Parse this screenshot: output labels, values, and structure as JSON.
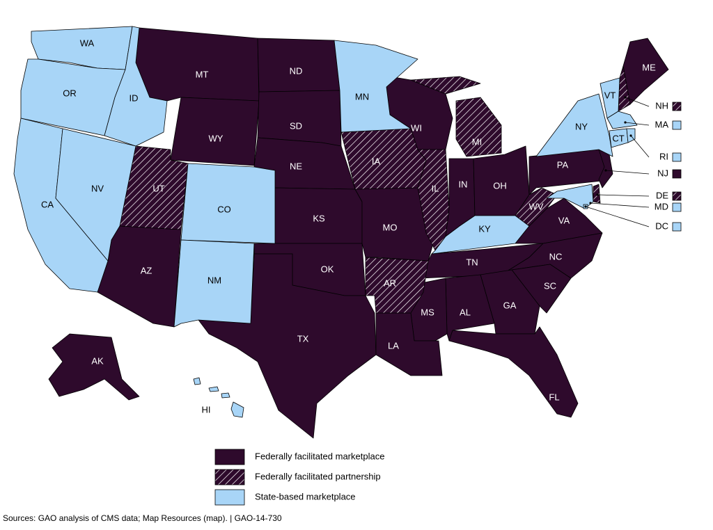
{
  "legend": [
    {
      "label": "Federally facilitated marketplace",
      "color": "#2e0a2c",
      "hatched": false,
      "states": [
        "MT",
        "ND",
        "WY",
        "SD",
        "NE",
        "KS",
        "AZ",
        "OK",
        "TX",
        "MO",
        "WI",
        "IN",
        "OH",
        "PA",
        "NJ",
        "VA",
        "NC",
        "SC",
        "TN",
        "GA",
        "AL",
        "MS",
        "LA",
        "FL",
        "AK",
        "ME"
      ]
    },
    {
      "label": "Federally facilitated partnership",
      "color": "#2e0a2c",
      "hatched": true,
      "states": [
        "UT",
        "IA",
        "IL",
        "MI",
        "AR",
        "WV",
        "NH",
        "DE"
      ]
    },
    {
      "label": "State-based marketplace",
      "color": "#a8d5f7",
      "hatched": false,
      "states": [
        "WA",
        "OR",
        "ID",
        "CA",
        "NV",
        "CO",
        "NM",
        "MN",
        "KY",
        "NY",
        "VT",
        "MA",
        "CT",
        "RI",
        "MD",
        "DC",
        "HI"
      ]
    }
  ],
  "source": "Sources: GAO analysis of CMS data; Map Resources (map).  |  GAO-14-730"
}
